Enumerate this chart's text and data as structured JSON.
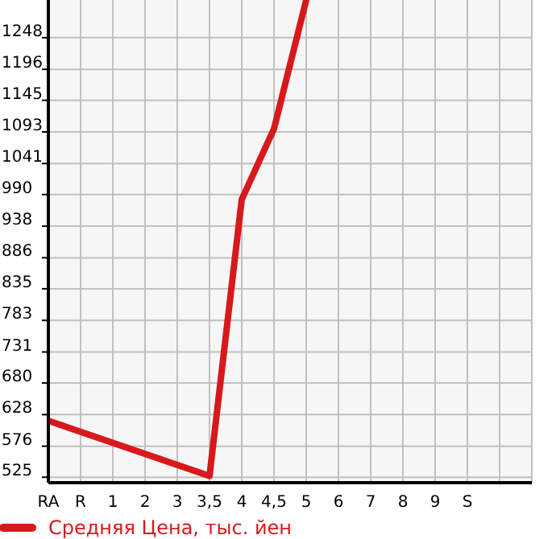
{
  "chart_data": {
    "type": "line",
    "categories": [
      "RA",
      "R",
      "1",
      "2",
      "3",
      "3,5",
      "4",
      "4,5",
      "5",
      "6",
      "7",
      "8",
      "9",
      "S",
      null,
      null
    ],
    "series": [
      {
        "name": "Средняя Цена, тыс. йен",
        "color": "#d7191c",
        "values": [
          618,
          null,
          null,
          null,
          null,
          527,
          982,
          1098,
          1310,
          null,
          null,
          null,
          null,
          null,
          null,
          null
        ]
      }
    ],
    "ylim": [
      516,
      1310
    ],
    "yticks": [
      525,
      576,
      628,
      680,
      731,
      783,
      835,
      886,
      938,
      990,
      1041,
      1093,
      1145,
      1196,
      1248
    ],
    "grid": true,
    "legend": "bottom",
    "marker": "none",
    "line_style": "solid"
  }
}
